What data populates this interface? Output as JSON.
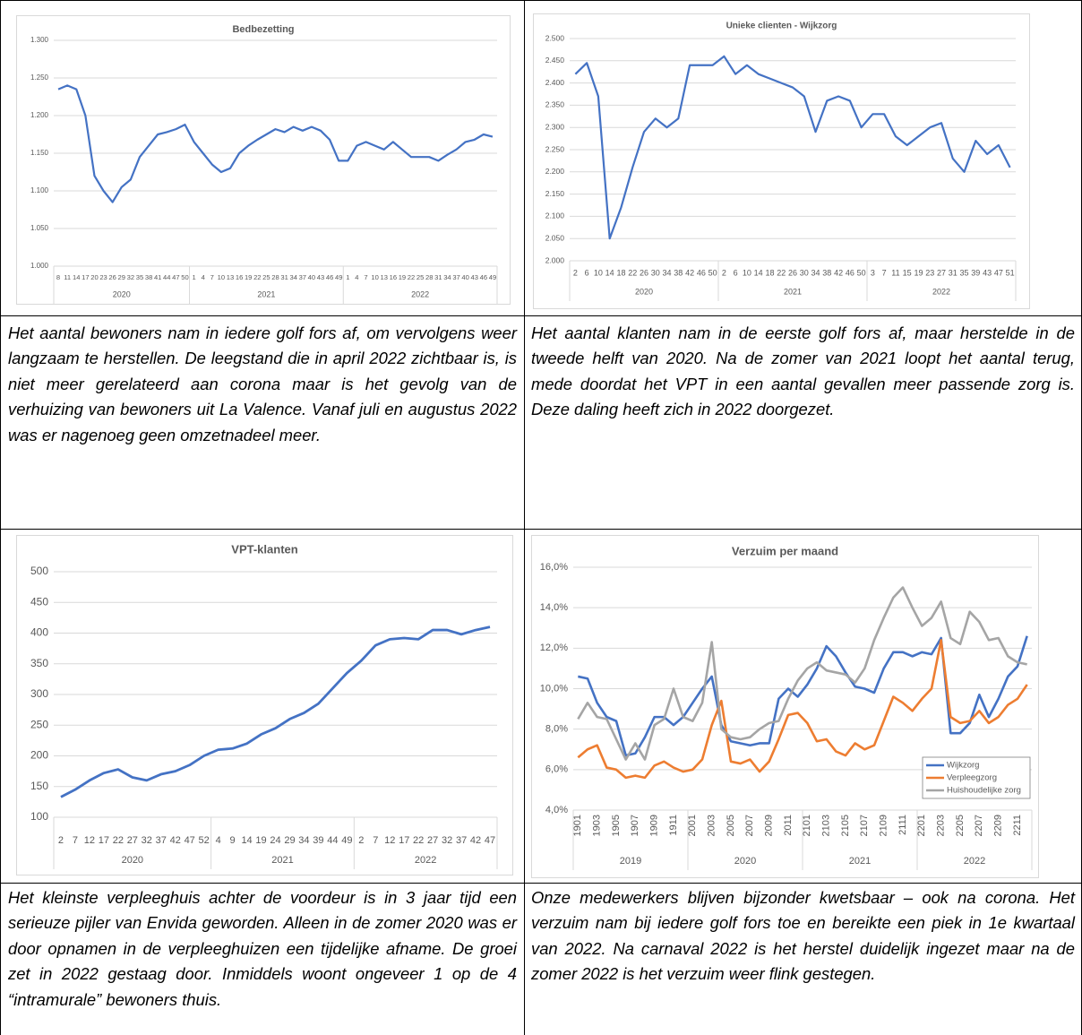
{
  "chart_data": [
    {
      "type": "line",
      "title": "Bedbezetting",
      "grid": true,
      "ylim": [
        1000,
        1300
      ],
      "yticks": [
        {
          "value": 1000,
          "label": "1.000"
        },
        {
          "value": 1050,
          "label": "1.050"
        },
        {
          "value": 1100,
          "label": "1.100"
        },
        {
          "value": 1150,
          "label": "1.150"
        },
        {
          "value": 1200,
          "label": "1.200"
        },
        {
          "value": 1250,
          "label": "1.250"
        },
        {
          "value": 1300,
          "label": "1.300"
        }
      ],
      "groups": [
        {
          "label": "2020",
          "categories": [
            8,
            11,
            14,
            17,
            20,
            23,
            26,
            29,
            32,
            35,
            38,
            41,
            44,
            47,
            50
          ]
        },
        {
          "label": "2021",
          "categories": [
            1,
            4,
            7,
            10,
            13,
            16,
            19,
            22,
            25,
            28,
            31,
            34,
            37,
            40,
            43,
            46,
            49
          ]
        },
        {
          "label": "2022",
          "categories": [
            1,
            4,
            7,
            10,
            13,
            16,
            19,
            22,
            25,
            28,
            31,
            34,
            37,
            40,
            43,
            46,
            49
          ]
        }
      ],
      "series": [
        {
          "color": "#4472c4",
          "values": [
            1235,
            1240,
            1235,
            1200,
            1120,
            1100,
            1085,
            1105,
            1115,
            1145,
            1160,
            1175,
            1178,
            1182,
            1188,
            1165,
            1150,
            1135,
            1125,
            1130,
            1150,
            1160,
            1168,
            1175,
            1182,
            1178,
            1185,
            1180,
            1185,
            1180,
            1168,
            1140,
            1140,
            1160,
            1165,
            1160,
            1155,
            1165,
            1155,
            1145,
            1145,
            1145,
            1140,
            1148,
            1155,
            1165,
            1168,
            1175,
            1172
          ]
        }
      ]
    },
    {
      "type": "line",
      "title": "Unieke clienten - Wijkzorg",
      "grid": true,
      "ylim": [
        2000,
        2500
      ],
      "yticks": [
        {
          "value": 2000,
          "label": "2.000"
        },
        {
          "value": 2050,
          "label": "2.050"
        },
        {
          "value": 2100,
          "label": "2.100"
        },
        {
          "value": 2150,
          "label": "2.150"
        },
        {
          "value": 2200,
          "label": "2.200"
        },
        {
          "value": 2250,
          "label": "2.250"
        },
        {
          "value": 2300,
          "label": "2.300"
        },
        {
          "value": 2350,
          "label": "2.350"
        },
        {
          "value": 2400,
          "label": "2.400"
        },
        {
          "value": 2450,
          "label": "2.450"
        },
        {
          "value": 2500,
          "label": "2.500"
        }
      ],
      "groups": [
        {
          "label": "2020",
          "categories": [
            2,
            6,
            10,
            14,
            18,
            22,
            26,
            30,
            34,
            38,
            42,
            46,
            50
          ]
        },
        {
          "label": "2021",
          "categories": [
            2,
            6,
            10,
            14,
            18,
            22,
            26,
            30,
            34,
            38,
            42,
            46,
            50
          ]
        },
        {
          "label": "2022",
          "categories": [
            3,
            7,
            11,
            15,
            19,
            23,
            27,
            31,
            35,
            39,
            43,
            47,
            51
          ]
        }
      ],
      "series": [
        {
          "color": "#4472c4",
          "values": [
            2420,
            2445,
            2370,
            2050,
            2120,
            2210,
            2290,
            2320,
            2300,
            2320,
            2440,
            2440,
            2440,
            2460,
            2420,
            2440,
            2420,
            2410,
            2400,
            2390,
            2370,
            2290,
            2360,
            2370,
            2360,
            2300,
            2330,
            2330,
            2280,
            2260,
            2280,
            2300,
            2310,
            2230,
            2200,
            2270,
            2240,
            2260,
            2210
          ]
        }
      ]
    },
    {
      "type": "line",
      "title": "VPT-klanten",
      "grid": true,
      "ylim": [
        100,
        500
      ],
      "yticks": [
        100,
        150,
        200,
        250,
        300,
        350,
        400,
        450,
        500
      ],
      "groups": [
        {
          "label": "2020",
          "categories": [
            2,
            7,
            12,
            17,
            22,
            27,
            32,
            37,
            42,
            47,
            52
          ]
        },
        {
          "label": "2021",
          "categories": [
            4,
            9,
            14,
            19,
            24,
            29,
            34,
            39,
            44,
            49
          ]
        },
        {
          "label": "2022",
          "categories": [
            2,
            7,
            12,
            17,
            22,
            27,
            32,
            37,
            42,
            47
          ]
        }
      ],
      "series": [
        {
          "color": "#4472c4",
          "values": [
            133,
            145,
            160,
            172,
            178,
            165,
            160,
            170,
            175,
            185,
            200,
            210,
            212,
            220,
            235,
            245,
            260,
            270,
            285,
            310,
            335,
            355,
            380,
            390,
            392,
            390,
            405,
            405,
            398,
            405,
            410
          ]
        }
      ]
    },
    {
      "type": "line",
      "title": "Verzuim per maand",
      "grid": true,
      "legend": "lower right",
      "ylim": [
        4,
        16
      ],
      "yticks": [
        {
          "value": 4,
          "label": "4,0%"
        },
        {
          "value": 6,
          "label": "6,0%"
        },
        {
          "value": 8,
          "label": "8,0%"
        },
        {
          "value": 10,
          "label": "10,0%"
        },
        {
          "value": 12,
          "label": "12,0%"
        },
        {
          "value": 14,
          "label": "14,0%"
        },
        {
          "value": 16,
          "label": "16,0%"
        }
      ],
      "groups": [
        {
          "label": "2019",
          "categories": [
            1901,
            null,
            1903,
            null,
            1905,
            null,
            1907,
            null,
            1909,
            null,
            1911,
            null
          ]
        },
        {
          "label": "2020",
          "categories": [
            2001,
            null,
            2003,
            null,
            2005,
            null,
            2007,
            null,
            2009,
            null,
            2011,
            null
          ]
        },
        {
          "label": "2021",
          "categories": [
            2101,
            null,
            2103,
            null,
            2105,
            null,
            2107,
            null,
            2109,
            null,
            2111,
            null
          ]
        },
        {
          "label": "2022",
          "categories": [
            2201,
            null,
            2203,
            null,
            2205,
            null,
            2207,
            null,
            2209,
            null,
            2211,
            null
          ]
        }
      ],
      "series": [
        {
          "name": "Wijkzorg",
          "color": "#4472c4",
          "values": [
            10.6,
            10.5,
            9.3,
            8.6,
            8.4,
            6.7,
            6.8,
            7.6,
            8.6,
            8.6,
            8.2,
            8.6,
            9.3,
            10.0,
            10.6,
            8.2,
            7.4,
            7.3,
            7.2,
            7.3,
            7.3,
            9.5,
            10.0,
            9.6,
            10.2,
            11.0,
            12.1,
            11.6,
            10.8,
            10.1,
            10.0,
            9.8,
            11.0,
            11.8,
            11.8,
            11.6,
            11.8,
            11.7,
            12.5,
            7.8,
            7.8,
            8.3,
            9.7,
            8.6,
            9.5,
            10.6,
            11.1,
            12.6
          ]
        },
        {
          "name": "Verpleegzorg",
          "color": "#ed7d31",
          "values": [
            6.6,
            7.0,
            7.2,
            6.1,
            6.0,
            5.6,
            5.7,
            5.6,
            6.2,
            6.4,
            6.1,
            5.9,
            6.0,
            6.5,
            8.2,
            9.4,
            6.4,
            6.3,
            6.5,
            5.9,
            6.4,
            7.5,
            8.7,
            8.8,
            8.3,
            7.4,
            7.5,
            6.9,
            6.7,
            7.3,
            7.0,
            7.2,
            8.4,
            9.6,
            9.3,
            8.9,
            9.5,
            10.0,
            12.4,
            8.6,
            8.3,
            8.4,
            8.9,
            8.3,
            8.6,
            9.2,
            9.5,
            10.2
          ]
        },
        {
          "name": "Huishoudelijke zorg",
          "color": "#a5a5a5",
          "values": [
            8.5,
            9.3,
            8.6,
            8.5,
            7.5,
            6.5,
            7.3,
            6.5,
            8.2,
            8.5,
            10.0,
            8.6,
            8.4,
            9.3,
            12.3,
            8.0,
            7.6,
            7.5,
            7.6,
            8.0,
            8.3,
            8.4,
            9.5,
            10.4,
            11.0,
            11.3,
            10.9,
            10.8,
            10.7,
            10.3,
            11.0,
            12.4,
            13.5,
            14.5,
            15.0,
            14.0,
            13.1,
            13.5,
            14.3,
            12.5,
            12.2,
            13.8,
            13.3,
            12.4,
            12.5,
            11.6,
            11.3,
            11.2
          ]
        }
      ]
    }
  ],
  "captions": [
    "Het aantal bewoners nam in iedere golf fors af, om vervolgens weer langzaam te herstellen. De leegstand die in april 2022 zichtbaar is, is niet meer gerelateerd aan corona maar is het gevolg van de verhuizing van bewoners uit La Valence. Vanaf juli en augustus 2022 was er nagenoeg geen omzetnadeel meer.",
    "Het aantal klanten nam in de eerste golf fors af, maar herstelde in de tweede helft van 2020. Na de zomer van 2021 loopt het aantal terug, mede doordat het VPT in een aantal gevallen meer passende zorg is. Deze daling heeft zich in 2022 doorgezet.",
    "Het kleinste verpleeghuis achter de voordeur is in 3 jaar tijd een serieuze pijler van Envida geworden. Alleen in de zomer 2020 was er door opnamen in de verpleeghuizen een tijdelijke afname. De groei zet in 2022 gestaag door. Inmiddels woont ongeveer 1 op de 4 “intramurale” bewoners thuis.",
    "Onze medewerkers blijven bijzonder kwetsbaar – ook na corona. Het verzuim nam bij iedere golf fors toe en bereikte een piek in 1e kwartaal van 2022. Na carnaval 2022 is het herstel duidelijk ingezet maar na de zomer 2022 is het verzuim weer flink gestegen."
  ]
}
